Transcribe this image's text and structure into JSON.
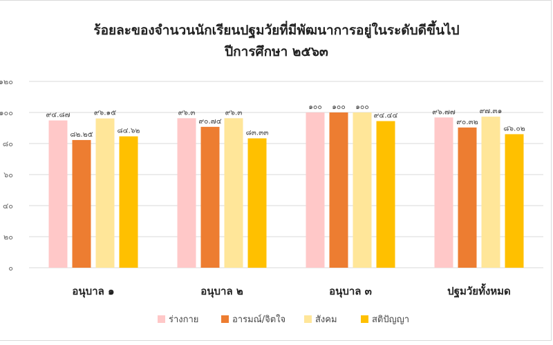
{
  "chart_data": {
    "type": "bar",
    "title_lines": [
      "ร้อยละของจำนวนนักเรียนปฐมวัยที่มีพัฒนาการอยู่ในระดับดีขึ้นไป",
      "ปีการศึกษา ๒๕๖๓"
    ],
    "categories": [
      "อนุบาล ๑",
      "อนุบาล ๒",
      "อนุบาล ๓",
      "ปฐมวัยทั้งหมด"
    ],
    "ylim": [
      0,
      120
    ],
    "yticks": [
      {
        "value": 0,
        "label": "๐"
      },
      {
        "value": 20,
        "label": "๒๐"
      },
      {
        "value": 40,
        "label": "๔๐"
      },
      {
        "value": 60,
        "label": "๖๐"
      },
      {
        "value": 80,
        "label": "๘๐"
      },
      {
        "value": 100,
        "label": "๑๐๐"
      },
      {
        "value": 120,
        "label": "๑๒๐"
      }
    ],
    "grid": true,
    "legend_position": "bottom",
    "series": [
      {
        "name": "ร่างกาย",
        "color": "#ffc8c8",
        "values": [
          94.87,
          96.3,
          100,
          96.77
        ],
        "labels": [
          "๙๔.๘๗",
          "๙๖.๓",
          "๑๐๐",
          "๙๖.๗๗"
        ]
      },
      {
        "name": "อารมณ์/จิตใจ",
        "color": "#ed7d31",
        "values": [
          82.25,
          90.74,
          100,
          90.32
        ],
        "labels": [
          "๘๒.๒๕",
          "๙๐.๗๔",
          "๑๐๐",
          "๙๐.๓๒"
        ]
      },
      {
        "name": "สังคม",
        "color": "#ffe699",
        "values": [
          96.15,
          96.3,
          100,
          97.31
        ],
        "labels": [
          "๙๖.๑๕",
          "๙๖.๓",
          "๑๐๐",
          "๙๗.๓๑"
        ]
      },
      {
        "name": "สติปัญญา",
        "color": "#ffc000",
        "values": [
          84.62,
          83.33,
          94.44,
          86.02
        ],
        "labels": [
          "๘๔.๖๒",
          "๘๓.๓๓",
          "๙๔.๔๔",
          "๘๖.๐๒"
        ]
      }
    ]
  }
}
